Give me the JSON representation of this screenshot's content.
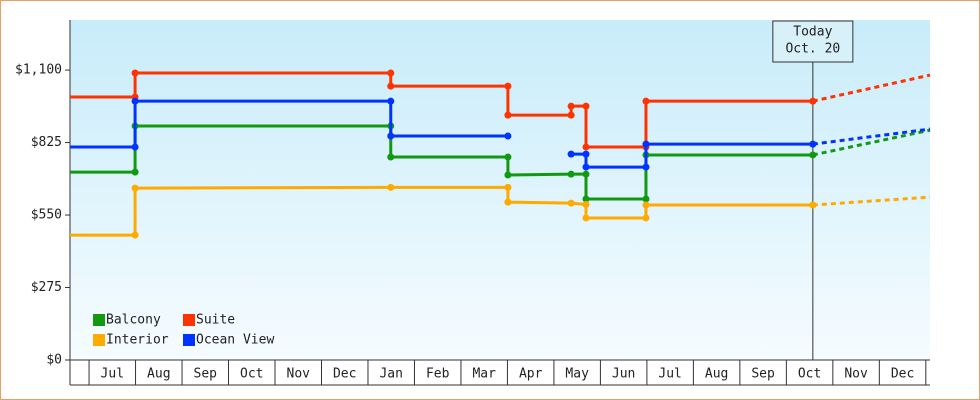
{
  "chart_data": {
    "type": "step-line",
    "ylim": [
      0,
      1290
    ],
    "yticks": [
      {
        "value": 0,
        "label": "$0"
      },
      {
        "value": 275,
        "label": "$275"
      },
      {
        "value": 550,
        "label": "$550"
      },
      {
        "value": 825,
        "label": "$825"
      },
      {
        "value": 1100,
        "label": "$1,100"
      }
    ],
    "xlim": [
      -0.41,
      18.09
    ],
    "xticks": [
      {
        "value": 0.5,
        "label": "Jul"
      },
      {
        "value": 1.5,
        "label": "Aug"
      },
      {
        "value": 2.5,
        "label": "Sep"
      },
      {
        "value": 3.5,
        "label": "Oct"
      },
      {
        "value": 4.5,
        "label": "Nov"
      },
      {
        "value": 5.5,
        "label": "Dec"
      },
      {
        "value": 6.5,
        "label": "Jan"
      },
      {
        "value": 7.5,
        "label": "Feb"
      },
      {
        "value": 8.5,
        "label": "Mar"
      },
      {
        "value": 9.5,
        "label": "Apr"
      },
      {
        "value": 10.5,
        "label": "May"
      },
      {
        "value": 11.5,
        "label": "Jun"
      },
      {
        "value": 12.5,
        "label": "Jul"
      },
      {
        "value": 13.5,
        "label": "Aug"
      },
      {
        "value": 14.5,
        "label": "Sep"
      },
      {
        "value": 15.5,
        "label": "Oct"
      },
      {
        "value": 16.5,
        "label": "Nov"
      },
      {
        "value": 17.5,
        "label": "Dec"
      }
    ],
    "annotation": {
      "x": 15.57,
      "lines": [
        "Today",
        "Oct. 20"
      ]
    },
    "series": [
      {
        "name": "Balcony",
        "color": "#119911",
        "x": [
          -0.41,
          0.99,
          0.99,
          6.49,
          6.49,
          9.01,
          9.01,
          10.37,
          10.69,
          10.69,
          11.98,
          11.98,
          15.57
        ],
        "values": [
          713,
          713,
          888,
          888,
          770,
          770,
          702,
          705,
          705,
          611,
          611,
          778,
          778
        ],
        "forecast_x": [
          15.57,
          18.09
        ],
        "forecast_values": [
          778,
          872
        ]
      },
      {
        "name": "Suite",
        "color": "#ff3300",
        "x": [
          -0.41,
          0.99,
          0.99,
          6.49,
          6.49,
          9.01,
          9.01,
          10.37,
          10.37,
          10.69,
          10.69,
          11.98,
          11.98,
          15.57
        ],
        "values": [
          998,
          998,
          1089,
          1089,
          1039,
          1039,
          929,
          929,
          963,
          963,
          808,
          808,
          982,
          982
        ],
        "forecast_x": [
          15.57,
          18.09
        ],
        "forecast_values": [
          982,
          1081
        ]
      },
      {
        "name": "Interior",
        "color": "#ffaa00",
        "x": [
          -0.41,
          0.99,
          0.99,
          6.49,
          9.01,
          9.01,
          10.37,
          10.69,
          10.69,
          11.98,
          11.98,
          15.57
        ],
        "values": [
          474,
          474,
          652,
          655,
          655,
          599,
          595,
          590,
          539,
          539,
          588,
          588
        ],
        "forecast_x": [
          15.57,
          18.09
        ],
        "forecast_values": [
          588,
          618
        ]
      },
      {
        "name": "Ocean View",
        "color": "#0033ff",
        "x": [
          -0.41,
          0.99,
          0.99,
          6.49,
          6.49,
          9.01,
          null,
          10.37,
          10.69,
          10.69,
          11.98,
          11.98,
          15.57
        ],
        "values": [
          808,
          808,
          982,
          982,
          850,
          850,
          null,
          781,
          781,
          732,
          732,
          819,
          819
        ],
        "forecast_x": [
          15.57,
          18.09
        ],
        "forecast_values": [
          819,
          876
        ]
      }
    ]
  }
}
